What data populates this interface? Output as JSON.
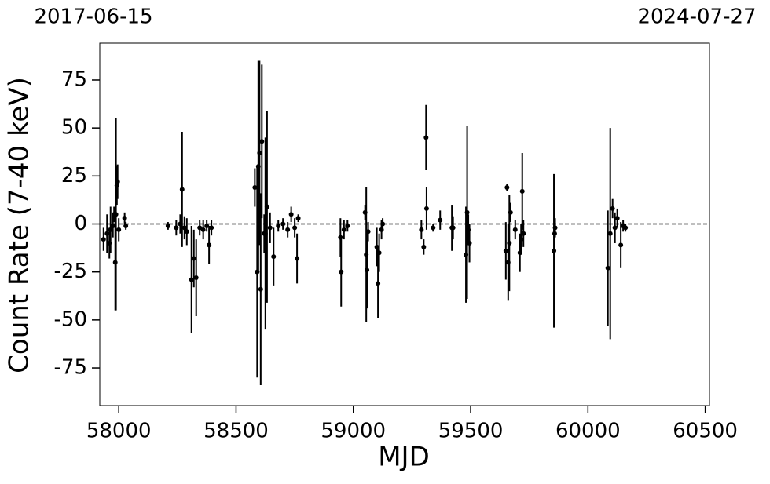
{
  "chart_data": {
    "type": "errorbar",
    "xlabel": "MJD",
    "ylabel": "Count Rate (7-40 keV)",
    "xlim": [
      57919,
      60518
    ],
    "ylim": [
      -94.6,
      94.2
    ],
    "xticks": [
      58000,
      58500,
      59000,
      59500,
      60000,
      60500
    ],
    "yticks": [
      -75,
      -50,
      -25,
      0,
      25,
      50,
      75
    ],
    "x2ticks": [
      {
        "value": 57919,
        "label": "2017-06-15"
      },
      {
        "value": 60518,
        "label": "2024-07-27"
      }
    ],
    "hline": 0,
    "color": "#000000",
    "x": [
      57935,
      57950,
      57960,
      57965,
      57975,
      57980,
      57985,
      57988,
      57992,
      57995,
      58000,
      58025,
      58030,
      58210,
      58245,
      58262,
      58270,
      58280,
      58290,
      58310,
      58320,
      58330,
      58345,
      58360,
      58375,
      58385,
      58395,
      58580,
      58590,
      58595,
      58600,
      58605,
      58610,
      58620,
      58625,
      58632,
      58645,
      58660,
      58680,
      58700,
      58720,
      58735,
      58750,
      58760,
      58765,
      58945,
      58948,
      58960,
      58975,
      59050,
      59055,
      59058,
      59063,
      59100,
      59105,
      59110,
      59120,
      59125,
      59290,
      59300,
      59310,
      59312,
      59340,
      59370,
      59420,
      59425,
      59480,
      59485,
      59490,
      59495,
      59650,
      59655,
      59660,
      59665,
      59670,
      59690,
      59710,
      59715,
      59720,
      59725,
      59855,
      59858,
      59860,
      60085,
      60095,
      60105,
      60115,
      60125,
      60140,
      60150,
      60160
    ],
    "values": [
      -8,
      -5,
      -10,
      -3,
      -1,
      5,
      -20,
      5,
      20,
      22,
      -3,
      3,
      -1,
      -1,
      -2,
      0,
      18,
      -2,
      -4,
      -29,
      -18,
      -28,
      -2,
      -3,
      -1,
      -11,
      -2,
      19,
      -25,
      30,
      37,
      -34,
      43,
      -5,
      -5,
      9,
      -2,
      -17,
      -1,
      0,
      -3,
      5,
      -2,
      -18,
      3,
      -7,
      -25,
      -3,
      -1,
      6,
      -16,
      -24,
      -4,
      -12,
      -31,
      -15,
      -3,
      0,
      -3,
      -12,
      45,
      8,
      -2,
      2,
      -2,
      -2,
      -16,
      6,
      -3,
      -10,
      -14,
      19,
      -20,
      -10,
      6,
      -3,
      -15,
      -8,
      17,
      -5,
      -14,
      -5,
      -2,
      -23,
      -5,
      8,
      -2,
      3,
      -11,
      -1,
      -2
    ],
    "errors": [
      6,
      10,
      8,
      12,
      6,
      4,
      25,
      50,
      10,
      9,
      6,
      3,
      2,
      2,
      4,
      5,
      30,
      6,
      7,
      28,
      15,
      20,
      4,
      5,
      3,
      10,
      4,
      10,
      55,
      55,
      48,
      50,
      40,
      10,
      50,
      50,
      8,
      15,
      3,
      3,
      4,
      4,
      5,
      13,
      2,
      10,
      18,
      5,
      3,
      4,
      35,
      20,
      5,
      10,
      18,
      10,
      5,
      3,
      5,
      4,
      17,
      11,
      2,
      5,
      12,
      6,
      25,
      45,
      8,
      10,
      15,
      2,
      20,
      25,
      5,
      5,
      10,
      8,
      20,
      7,
      40,
      20,
      5,
      30,
      55,
      5,
      8,
      5,
      12,
      3,
      2
    ]
  }
}
